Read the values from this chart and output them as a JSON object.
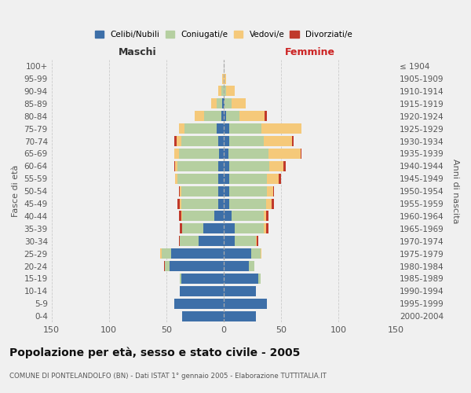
{
  "age_groups": [
    "0-4",
    "5-9",
    "10-14",
    "15-19",
    "20-24",
    "25-29",
    "30-34",
    "35-39",
    "40-44",
    "45-49",
    "50-54",
    "55-59",
    "60-64",
    "65-69",
    "70-74",
    "75-79",
    "80-84",
    "85-89",
    "90-94",
    "95-99",
    "100+"
  ],
  "birth_years": [
    "2000-2004",
    "1995-1999",
    "1990-1994",
    "1985-1989",
    "1980-1984",
    "1975-1979",
    "1970-1974",
    "1965-1969",
    "1960-1964",
    "1955-1959",
    "1950-1954",
    "1945-1949",
    "1940-1944",
    "1935-1939",
    "1930-1934",
    "1925-1929",
    "1920-1924",
    "1915-1919",
    "1910-1914",
    "1905-1909",
    "≤ 1904"
  ],
  "maschi": {
    "celibi": [
      36,
      43,
      38,
      37,
      47,
      46,
      22,
      18,
      8,
      5,
      5,
      5,
      5,
      4,
      5,
      6,
      2,
      1,
      0,
      0,
      0
    ],
    "coniugati": [
      0,
      0,
      0,
      1,
      4,
      8,
      16,
      18,
      28,
      32,
      32,
      35,
      35,
      35,
      32,
      28,
      15,
      5,
      2,
      0,
      0
    ],
    "vedovi": [
      0,
      0,
      0,
      0,
      0,
      1,
      0,
      0,
      1,
      1,
      1,
      2,
      2,
      4,
      4,
      5,
      8,
      5,
      3,
      1,
      0
    ],
    "divorziati": [
      0,
      0,
      0,
      0,
      1,
      0,
      1,
      2,
      2,
      2,
      1,
      0,
      1,
      0,
      2,
      0,
      0,
      0,
      0,
      0,
      0
    ]
  },
  "femmine": {
    "nubili": [
      28,
      38,
      28,
      30,
      22,
      24,
      10,
      10,
      7,
      5,
      5,
      5,
      5,
      4,
      5,
      5,
      2,
      1,
      0,
      0,
      0
    ],
    "coniugate": [
      0,
      0,
      0,
      2,
      5,
      8,
      18,
      25,
      28,
      32,
      33,
      33,
      35,
      35,
      30,
      28,
      12,
      6,
      2,
      0,
      0
    ],
    "vedove": [
      0,
      0,
      0,
      0,
      0,
      1,
      1,
      2,
      2,
      5,
      5,
      10,
      12,
      28,
      25,
      35,
      22,
      12,
      8,
      2,
      0
    ],
    "divorziate": [
      0,
      0,
      0,
      0,
      0,
      0,
      1,
      2,
      2,
      2,
      1,
      2,
      2,
      1,
      1,
      0,
      2,
      0,
      0,
      0,
      0
    ]
  },
  "colors": {
    "celibi_nubili": "#3d6fa8",
    "coniugati": "#b5cfa0",
    "vedovi": "#f5c97a",
    "divorziati": "#c0392b"
  },
  "xlim": 150,
  "title": "Popolazione per età, sesso e stato civile - 2005",
  "subtitle": "COMUNE DI PONTELANDOLFO (BN) - Dati ISTAT 1° gennaio 2005 - Elaborazione TUTTITALIA.IT",
  "xlabel_left": "Maschi",
  "xlabel_right": "Femmine",
  "ylabel_left": "Fasce di età",
  "ylabel_right": "Anni di nascita",
  "bg_color": "#f0f0f0",
  "grid_color": "#cccccc"
}
